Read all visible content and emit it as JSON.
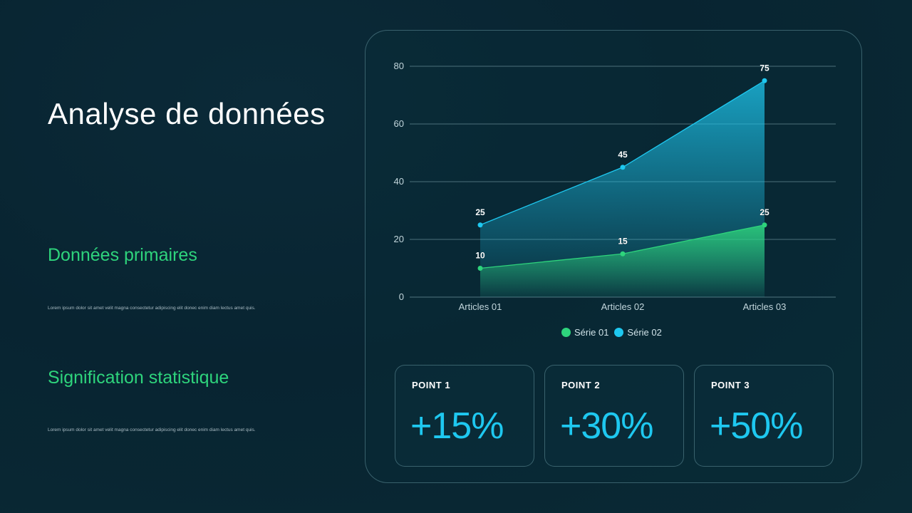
{
  "title": "Analyse de données",
  "sections": [
    {
      "heading": "Données primaires",
      "body": "Lorem ipsum dolor sit amet velit magna consectetur adipiscing elit donec enim diam lectus amet quis."
    },
    {
      "heading": "Signification statistique",
      "body": "Lorem ipsum dolor sit amet velit magna consectetur adipiscing elit donec enim diam lectus amet quis."
    }
  ],
  "colors": {
    "series1": "#2ed47c",
    "series2": "#1ec8f0",
    "grid": "#8fb7bf",
    "axis_text": "#c2d6dc"
  },
  "chart_data": {
    "type": "area",
    "categories": [
      "Articles 01",
      "Articles 02",
      "Articles 03"
    ],
    "series": [
      {
        "name": "Série 01",
        "values": [
          10,
          15,
          25
        ]
      },
      {
        "name": "Série 02",
        "values": [
          25,
          45,
          75
        ]
      }
    ],
    "ylim": [
      0,
      80
    ],
    "yticks": [
      0,
      20,
      40,
      60,
      80
    ],
    "grid": true,
    "legend": "bottom",
    "data_labels": true
  },
  "cards": [
    {
      "label": "POINT 1",
      "value": "+15%"
    },
    {
      "label": "POINT 2",
      "value": "+30%"
    },
    {
      "label": "POINT 3",
      "value": "+50%"
    }
  ]
}
